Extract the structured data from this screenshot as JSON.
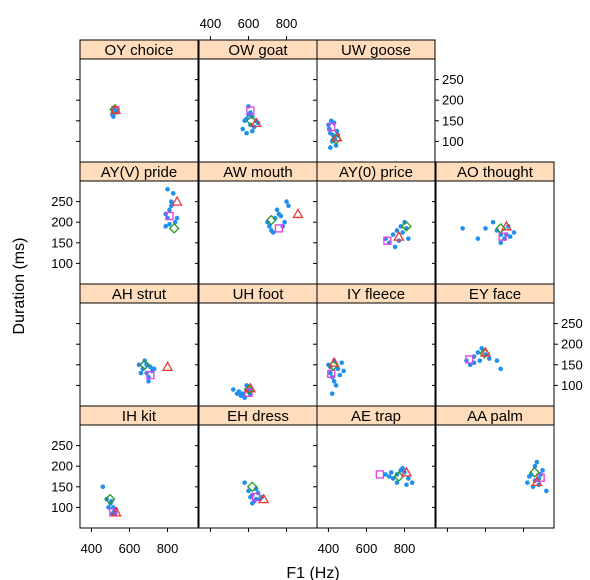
{
  "chart_data": {
    "type": "scatter",
    "xlabel": "F1 (Hz)",
    "ylabel": "Duration (ms)",
    "xlim": [
      340,
      960
    ],
    "ylim": [
      50,
      300
    ],
    "x_ticks": [
      400,
      600,
      800
    ],
    "y_ticks": [
      100,
      150,
      200,
      250
    ],
    "colors": {
      "points": "#1f8ff0",
      "triangle": "#e8393a",
      "diamond": "#2a9a2a",
      "square": "#e040e0",
      "strip": "#ffdcbb"
    },
    "panels": [
      {
        "label": "OY choice",
        "points": [
          [
            510,
            165
          ],
          [
            520,
            178
          ],
          [
            530,
            170
          ],
          [
            515,
            160
          ],
          [
            525,
            175
          ]
        ],
        "triangle": [
          527,
          177
        ],
        "diamond": [
          522,
          177
        ],
        "square": [
          526,
          176
        ]
      },
      {
        "label": "OW goat",
        "points": [
          [
            580,
            150
          ],
          [
            600,
            165
          ],
          [
            610,
            140
          ],
          [
            620,
            160
          ],
          [
            590,
            120
          ],
          [
            570,
            130
          ],
          [
            640,
            150
          ],
          [
            630,
            135
          ],
          [
            610,
            170
          ],
          [
            600,
            185
          ],
          [
            650,
            145
          ],
          [
            620,
            125
          ],
          [
            590,
            155
          ]
        ],
        "triangle": [
          640,
          145
        ],
        "diamond": [
          615,
          150
        ],
        "square": [
          610,
          175
        ]
      },
      {
        "label": "UW goose",
        "points": [
          [
            400,
            140
          ],
          [
            410,
            120
          ],
          [
            420,
            100
          ],
          [
            430,
            110
          ],
          [
            440,
            90
          ],
          [
            415,
            150
          ],
          [
            405,
            130
          ],
          [
            425,
            115
          ],
          [
            435,
            105
          ],
          [
            445,
            125
          ],
          [
            410,
            85
          ],
          [
            430,
            145
          ],
          [
            450,
            115
          ]
        ],
        "triangle": [
          445,
          110
        ],
        "diamond": [
          440,
          105
        ],
        "square": [
          415,
          135
        ]
      },
      {
        "label": "AY(V) pride",
        "points": [
          [
            790,
            190
          ],
          [
            800,
            210
          ],
          [
            810,
            230
          ],
          [
            820,
            250
          ],
          [
            830,
            270
          ],
          [
            800,
            280
          ],
          [
            840,
            200
          ],
          [
            850,
            210
          ],
          [
            810,
            195
          ],
          [
            790,
            220
          ],
          [
            820,
            240
          ]
        ],
        "triangle": [
          850,
          250
        ],
        "diamond": [
          835,
          185
        ],
        "square": [
          810,
          215
        ]
      },
      {
        "label": "AW mouth",
        "points": [
          [
            700,
            200
          ],
          [
            720,
            180
          ],
          [
            740,
            210
          ],
          [
            760,
            220
          ],
          [
            780,
            190
          ],
          [
            800,
            250
          ],
          [
            810,
            240
          ],
          [
            750,
            230
          ],
          [
            730,
            175
          ],
          [
            790,
            200
          ],
          [
            770,
            215
          ],
          [
            710,
            190
          ]
        ],
        "triangle": [
          860,
          220
        ],
        "diamond": [
          720,
          205
        ],
        "square": [
          760,
          185
        ]
      },
      {
        "label": "AY(0) price",
        "points": [
          [
            700,
            160
          ],
          [
            720,
            150
          ],
          [
            740,
            170
          ],
          [
            760,
            180
          ],
          [
            780,
            190
          ],
          [
            800,
            200
          ],
          [
            820,
            160
          ],
          [
            790,
            175
          ],
          [
            750,
            140
          ],
          [
            770,
            155
          ],
          [
            810,
            185
          ]
        ],
        "triangle": [
          770,
          165
        ],
        "diamond": [
          810,
          190
        ],
        "square": [
          710,
          155
        ]
      },
      {
        "label": "AO thought",
        "points": [
          [
            480,
            185
          ],
          [
            560,
            160
          ],
          [
            600,
            185
          ],
          [
            640,
            200
          ],
          [
            660,
            180
          ],
          [
            680,
            170
          ],
          [
            700,
            160
          ],
          [
            720,
            190
          ],
          [
            750,
            175
          ],
          [
            680,
            150
          ],
          [
            710,
            170
          ],
          [
            730,
            165
          ]
        ],
        "triangle": [
          710,
          190
        ],
        "diamond": [
          680,
          185
        ],
        "square": [
          690,
          165
        ]
      },
      {
        "label": "AH strut",
        "points": [
          [
            650,
            150
          ],
          [
            670,
            140
          ],
          [
            690,
            130
          ],
          [
            700,
            120
          ],
          [
            710,
            145
          ],
          [
            680,
            160
          ],
          [
            720,
            135
          ],
          [
            660,
            130
          ],
          [
            700,
            110
          ],
          [
            690,
            150
          ],
          [
            730,
            140
          ]
        ],
        "triangle": [
          800,
          145
        ],
        "diamond": [
          680,
          150
        ],
        "square": [
          710,
          125
        ]
      },
      {
        "label": "UH foot",
        "points": [
          [
            520,
            90
          ],
          [
            540,
            80
          ],
          [
            560,
            75
          ],
          [
            580,
            70
          ],
          [
            600,
            85
          ],
          [
            610,
            90
          ],
          [
            590,
            100
          ],
          [
            550,
            85
          ],
          [
            570,
            80
          ],
          [
            610,
            78
          ]
        ],
        "triangle": [
          610,
          93
        ],
        "diamond": [
          603,
          90
        ],
        "square": [
          600,
          82
        ]
      },
      {
        "label": "IY fleece",
        "points": [
          [
            400,
            150
          ],
          [
            410,
            130
          ],
          [
            420,
            120
          ],
          [
            430,
            110
          ],
          [
            440,
            100
          ],
          [
            450,
            140
          ],
          [
            460,
            125
          ],
          [
            420,
            80
          ],
          [
            470,
            155
          ],
          [
            480,
            135
          ],
          [
            410,
            145
          ],
          [
            430,
            160
          ]
        ],
        "triangle": [
          430,
          155
        ],
        "diamond": [
          425,
          148
        ],
        "square": [
          415,
          128
        ]
      },
      {
        "label": "EY face",
        "points": [
          [
            500,
            160
          ],
          [
            520,
            150
          ],
          [
            540,
            170
          ],
          [
            560,
            180
          ],
          [
            580,
            190
          ],
          [
            600,
            175
          ],
          [
            620,
            165
          ],
          [
            660,
            160
          ],
          [
            680,
            140
          ],
          [
            540,
            155
          ],
          [
            570,
            160
          ]
        ],
        "triangle": [
          600,
          180
        ],
        "diamond": [
          595,
          178
        ],
        "square": [
          515,
          163
        ]
      },
      {
        "label": "IH kit",
        "points": [
          [
            460,
            150
          ],
          [
            480,
            120
          ],
          [
            500,
            110
          ],
          [
            520,
            90
          ],
          [
            530,
            95
          ],
          [
            510,
            85
          ],
          [
            490,
            100
          ],
          [
            505,
            115
          ],
          [
            525,
            85
          ],
          [
            515,
            100
          ]
        ],
        "triangle": [
          530,
          88
        ],
        "diamond": [
          498,
          120
        ],
        "square": [
          515,
          88
        ]
      },
      {
        "label": "EH dress",
        "points": [
          [
            580,
            160
          ],
          [
            600,
            140
          ],
          [
            620,
            130
          ],
          [
            640,
            120
          ],
          [
            650,
            135
          ],
          [
            630,
            115
          ],
          [
            610,
            125
          ],
          [
            660,
            120
          ],
          [
            640,
            145
          ],
          [
            620,
            110
          ],
          [
            670,
            125
          ]
        ],
        "triangle": [
          680,
          120
        ],
        "diamond": [
          620,
          150
        ],
        "square": [
          640,
          125
        ]
      },
      {
        "label": "AE trap",
        "points": [
          [
            700,
            180
          ],
          [
            720,
            175
          ],
          [
            740,
            170
          ],
          [
            760,
            160
          ],
          [
            780,
            190
          ],
          [
            800,
            185
          ],
          [
            820,
            170
          ],
          [
            840,
            160
          ],
          [
            790,
            195
          ],
          [
            760,
            180
          ],
          [
            810,
            155
          ],
          [
            730,
            185
          ]
        ],
        "triangle": [
          810,
          185
        ],
        "diamond": [
          770,
          175
        ],
        "square": [
          670,
          180
        ]
      },
      {
        "label": "AA palm",
        "points": [
          [
            820,
            160
          ],
          [
            840,
            180
          ],
          [
            860,
            200
          ],
          [
            870,
            210
          ],
          [
            880,
            170
          ],
          [
            900,
            190
          ],
          [
            920,
            140
          ],
          [
            850,
            150
          ],
          [
            830,
            175
          ],
          [
            880,
            155
          ],
          [
            860,
            165
          ],
          [
            890,
            180
          ]
        ],
        "triangle": [
          870,
          162
        ],
        "diamond": [
          858,
          185
        ],
        "square": [
          890,
          172
        ]
      }
    ]
  }
}
